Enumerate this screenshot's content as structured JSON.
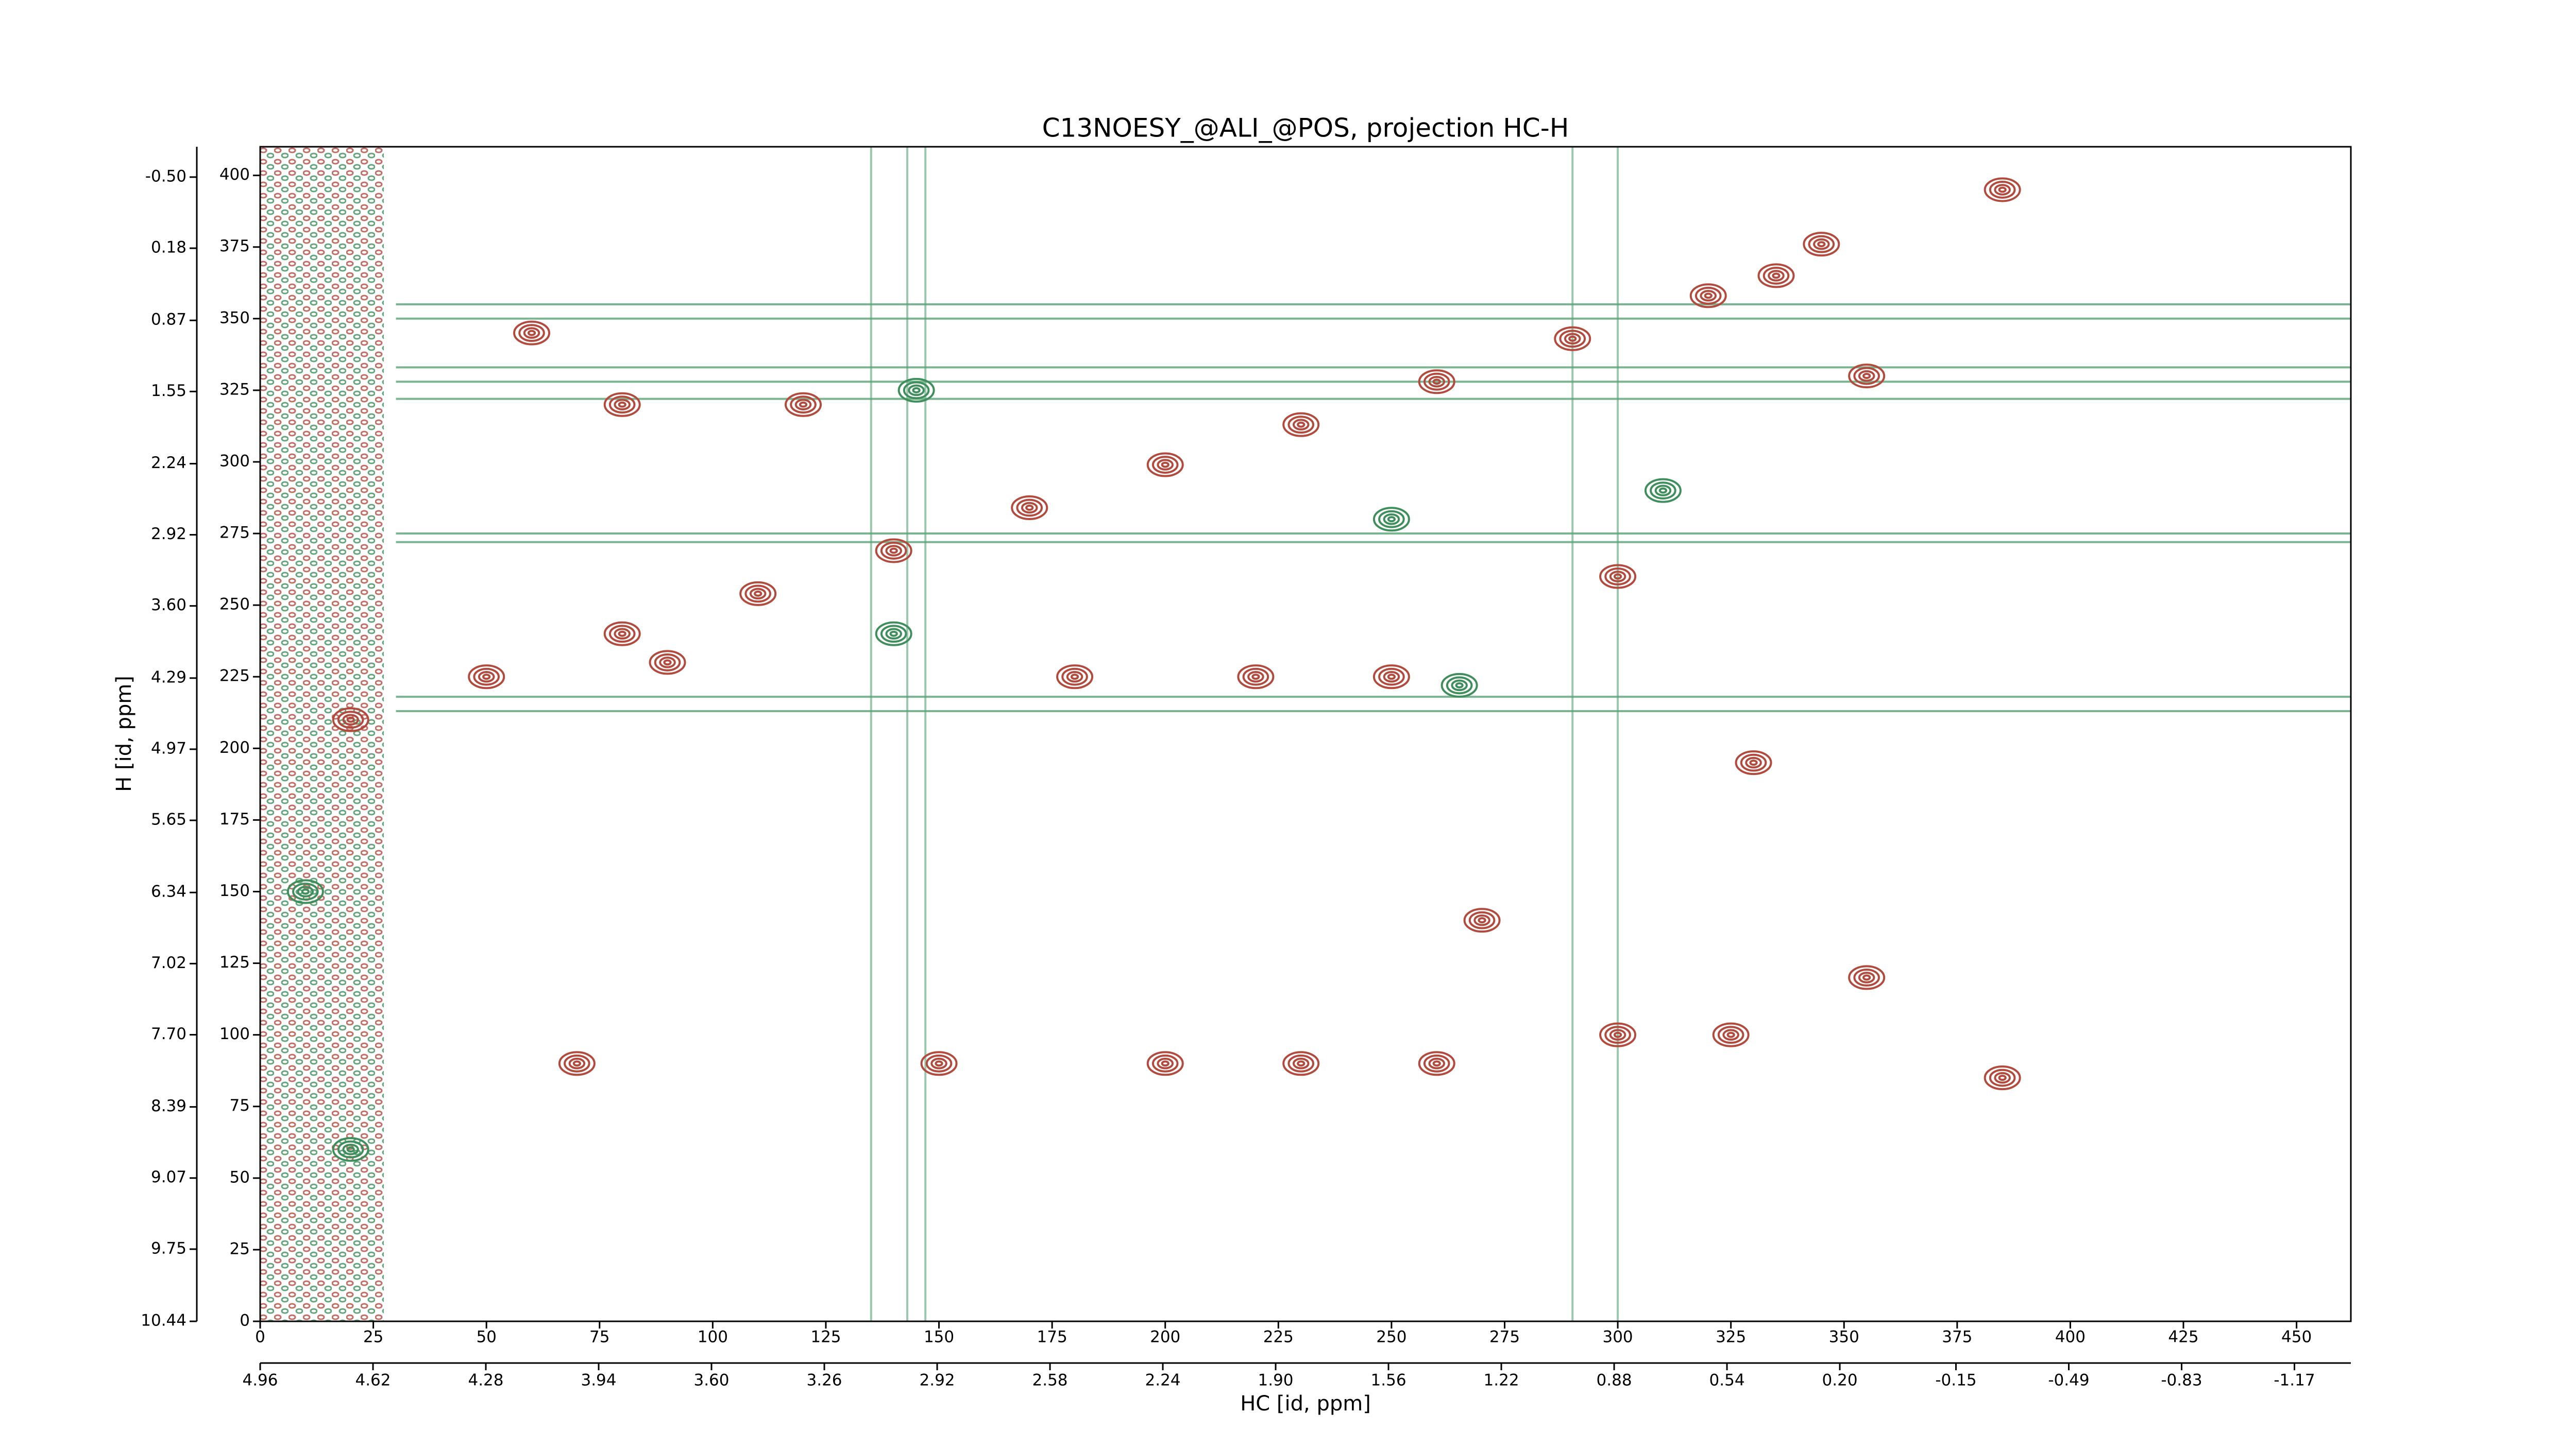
{
  "chart_data": {
    "type": "contour",
    "title": "C13NOESY_@ALI_@POS, projection HC-H",
    "xlabel": "HC [id, ppm]",
    "ylabel": "H [id, ppm]",
    "xlim": [
      0,
      462
    ],
    "ylim": [
      0,
      410
    ],
    "xticks": [
      0,
      25,
      50,
      75,
      100,
      125,
      150,
      175,
      200,
      225,
      250,
      275,
      300,
      325,
      350,
      375,
      400,
      425,
      450
    ],
    "yticks": [
      0,
      25,
      50,
      75,
      100,
      125,
      150,
      175,
      200,
      225,
      250,
      275,
      300,
      325,
      350,
      375,
      400
    ],
    "x2lim": [
      4.96,
      -1.34
    ],
    "x2ticks": [
      4.96,
      4.62,
      4.28,
      3.94,
      {
        "value": 3.6,
        "label": "3.60"
      },
      3.26,
      2.92,
      2.58,
      2.24,
      {
        "value": 1.9,
        "label": "1.90"
      },
      1.56,
      1.22,
      0.88,
      0.54,
      {
        "value": 0.2,
        "label": "0.20"
      },
      -0.15,
      -0.49,
      -0.83,
      -1.17
    ],
    "y2lim": [
      10.44,
      -0.79
    ],
    "y2ticks": [
      10.44,
      9.75,
      9.07,
      8.39,
      {
        "value": 7.7,
        "label": "7.70"
      },
      7.02,
      6.34,
      5.65,
      4.97,
      4.29,
      {
        "value": 3.6,
        "label": "3.60"
      },
      2.92,
      2.24,
      1.55,
      0.87,
      0.18,
      {
        "value": -0.5,
        "label": "-0.50"
      }
    ],
    "series": [
      {
        "color": "#b24a3e",
        "x": [
          20,
          50,
          80,
          110,
          140,
          170,
          200,
          230,
          260,
          290,
          320,
          335,
          345,
          385,
          70,
          150,
          200,
          230,
          260,
          300,
          325,
          180,
          220,
          250,
          80,
          120,
          300,
          330,
          355,
          385,
          355,
          90,
          60,
          270
        ],
        "y": [
          210,
          225,
          240,
          254,
          269,
          284,
          299,
          313,
          328,
          343,
          358,
          365,
          376,
          395,
          90,
          90,
          90,
          90,
          90,
          100,
          100,
          225,
          225,
          225,
          320,
          320,
          260,
          195,
          330,
          85,
          120,
          230,
          345,
          140
        ]
      },
      {
        "color": "#3f8f5c",
        "x": [
          145,
          140,
          250,
          310,
          10,
          20,
          265
        ],
        "y": [
          325,
          240,
          280,
          290,
          150,
          60,
          222
        ]
      }
    ],
    "h_ridges": {
      "color": "#5aa377",
      "y": [
        355,
        350,
        333,
        328,
        322,
        275,
        272,
        218,
        213
      ]
    },
    "v_ridges": {
      "color": "#5aa377",
      "x": [
        135,
        143,
        147,
        290,
        300
      ]
    }
  }
}
